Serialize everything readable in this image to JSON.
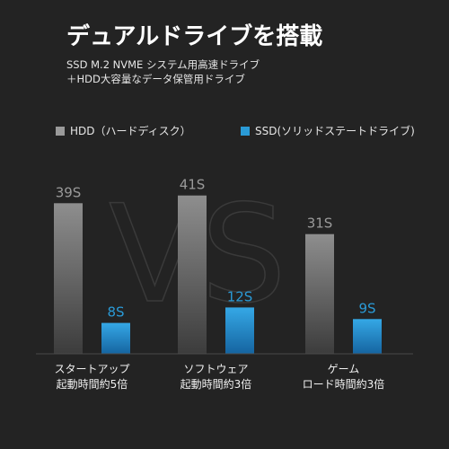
{
  "title": "デュアルドライブを搭載",
  "subtitle_lines": [
    "SSD M.2 NVME システム用高速ドライブ",
    "＋HDD大容量なデータ保管用ドライブ"
  ],
  "watermark": "VS",
  "colors": {
    "background": "#232323",
    "hdd": "#9a9a9a",
    "ssd": "#2a9ad6"
  },
  "chart_data": {
    "type": "bar",
    "value_suffix": "S",
    "categories": [
      [
        "スタートアップ",
        "起動時間約5倍"
      ],
      [
        "ソフトウェア",
        "起動時間約3倍"
      ],
      [
        "ゲーム",
        "ロード時間約3倍"
      ]
    ],
    "series": [
      {
        "name": "HDD（ハードディスク）",
        "values": [
          39,
          41,
          31
        ]
      },
      {
        "name": "SSD(ソリッドステートドライブ)",
        "values": [
          8,
          12,
          9
        ]
      }
    ],
    "ylim": [
      0,
      45
    ],
    "legend": "top"
  }
}
